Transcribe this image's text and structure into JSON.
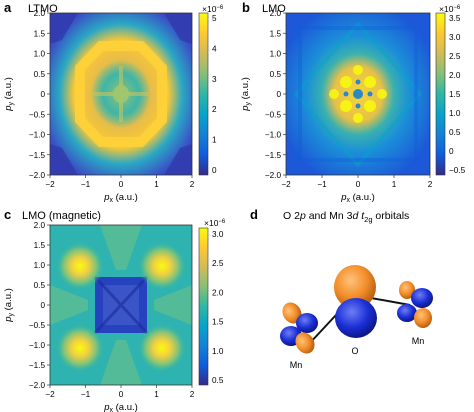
{
  "colors": {
    "parula_stops": [
      "#352a87",
      "#0f5cdd",
      "#1481d6",
      "#06a4ca",
      "#2eb7a4",
      "#87bf77",
      "#d1bb59",
      "#fec832",
      "#f9fb0e"
    ],
    "orbital_orange": "#f28c28",
    "orbital_blue": "#1a2fd6"
  },
  "panels": [
    {
      "letter": "a",
      "title": "LTMO",
      "xlabel_base": "p",
      "xlabel_sub": "x",
      "xlabel_unit": " (a.u.)",
      "ylabel_base": "p",
      "ylabel_sub": "y",
      "ylabel_unit": " (a.u.)",
      "xticks": [
        "−2",
        "−1",
        "0",
        "1",
        "2"
      ],
      "yticks": [
        "2.0",
        "1.5",
        "1.0",
        "0.5",
        "0",
        "−0.5",
        "−1.0",
        "−1.5",
        "−2.0"
      ],
      "colorbar_exponent": "×10",
      "colorbar_exponent_power": "−6",
      "colorbar_ticks": [
        "5",
        "4",
        "3",
        "2",
        "1",
        "0"
      ]
    },
    {
      "letter": "b",
      "title": "LMO",
      "xlabel_base": "p",
      "xlabel_sub": "x",
      "xlabel_unit": " (a.u.)",
      "ylabel_base": "p",
      "ylabel_sub": "y",
      "ylabel_unit": " (a.u.)",
      "xticks": [
        "−2",
        "−1",
        "0",
        "1",
        "2"
      ],
      "yticks": [
        "2.0",
        "1.5",
        "1.0",
        "0.5",
        "0",
        "−0.5",
        "−1.0",
        "−1.5",
        "−2.0"
      ],
      "colorbar_exponent": "×10",
      "colorbar_exponent_power": "−6",
      "colorbar_ticks": [
        "3.5",
        "3.0",
        "2.5",
        "2.0",
        "1.5",
        "1.0",
        "0.5",
        "0",
        "−0.5"
      ]
    },
    {
      "letter": "c",
      "title": "LMO (magnetic)",
      "xlabel_base": "p",
      "xlabel_sub": "x",
      "xlabel_unit": " (a.u.)",
      "ylabel_base": "p",
      "ylabel_sub": "y",
      "ylabel_unit": " (a.u.)",
      "xticks": [
        "−2",
        "−1",
        "0",
        "1",
        "2"
      ],
      "yticks": [
        "2.0",
        "1.5",
        "1.0",
        "0.5",
        "0",
        "−0.5",
        "−1.0",
        "−1.5",
        "−2.0"
      ],
      "colorbar_exponent": "×10",
      "colorbar_exponent_power": "−6",
      "colorbar_ticks": [
        "3.0",
        "2.5",
        "2.0",
        "1.5",
        "1.0",
        "0.5"
      ]
    }
  ],
  "panel_d": {
    "letter": "d",
    "title_parts": [
      "O 2",
      "p",
      " and Mn 3",
      "d",
      " ",
      "t",
      "2g",
      " orbitals"
    ],
    "atom_labels": [
      "Mn",
      "O",
      "Mn"
    ]
  }
}
